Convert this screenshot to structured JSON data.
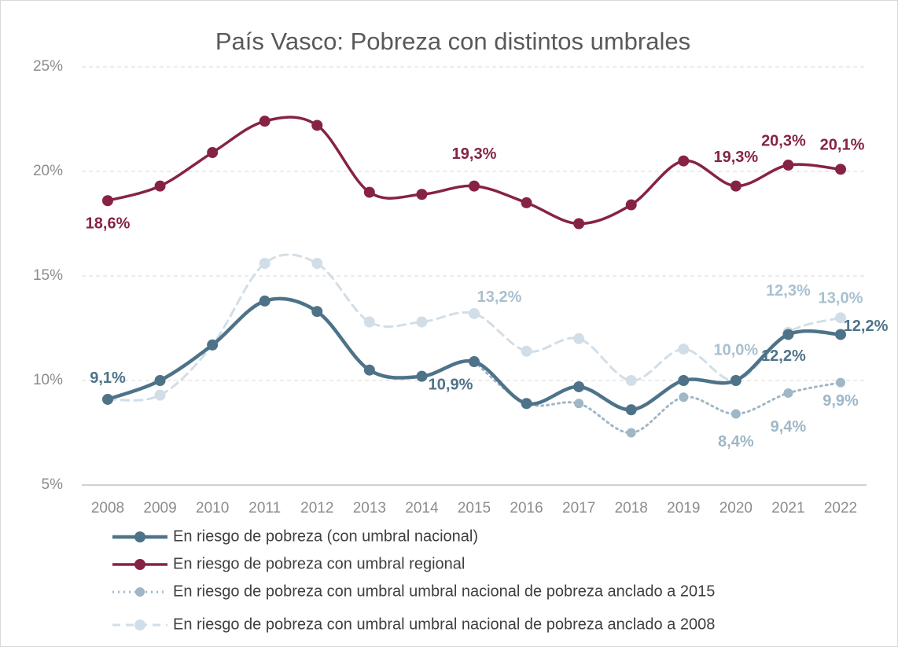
{
  "chart_data": {
    "type": "line",
    "title": "País Vasco: Pobreza con distintos umbrales",
    "categories": [
      "2008",
      "2009",
      "2010",
      "2011",
      "2012",
      "2013",
      "2014",
      "2015",
      "2016",
      "2017",
      "2018",
      "2019",
      "2020",
      "2021",
      "2022"
    ],
    "ylim": [
      5,
      25
    ],
    "yticks": [
      {
        "value": 5,
        "label": "5%"
      },
      {
        "value": 10,
        "label": "10%"
      },
      {
        "value": 15,
        "label": "15%"
      },
      {
        "value": 20,
        "label": "20%"
      },
      {
        "value": 25,
        "label": "25%"
      }
    ],
    "grid": true,
    "series": [
      {
        "name": "En riesgo de pobreza (con umbral nacional)",
        "color": "#4e7388",
        "style": "solid",
        "values": [
          9.1,
          10.0,
          11.7,
          13.8,
          13.3,
          10.5,
          10.2,
          10.9,
          8.9,
          9.7,
          8.6,
          10.0,
          10.0,
          12.2,
          12.2
        ],
        "value_labels": [
          "9,1%",
          null,
          null,
          null,
          null,
          null,
          null,
          "10,9%",
          null,
          null,
          null,
          null,
          null,
          "12,2%",
          "12,2%"
        ]
      },
      {
        "name": "En riesgo de pobreza con umbral regional",
        "color": "#862343",
        "style": "solid",
        "values": [
          18.6,
          19.3,
          20.9,
          22.4,
          22.2,
          19.0,
          18.9,
          19.3,
          18.5,
          17.5,
          18.4,
          20.5,
          19.3,
          20.3,
          20.1
        ],
        "value_labels": [
          "18,6%",
          null,
          null,
          null,
          null,
          null,
          null,
          "19,3%",
          null,
          null,
          null,
          null,
          "19,3%",
          "20,3%",
          "20,1%"
        ]
      },
      {
        "name": "En riesgo de pobreza con umbral umbral nacional de pobreza anclado a 2015",
        "color": "#9fb7c7",
        "style": "dotted",
        "values": [
          null,
          null,
          null,
          null,
          null,
          null,
          null,
          10.9,
          8.9,
          8.9,
          7.5,
          9.2,
          8.4,
          9.4,
          9.9
        ],
        "value_labels": [
          null,
          null,
          null,
          null,
          null,
          null,
          null,
          null,
          null,
          null,
          null,
          null,
          "8,4%",
          "9,4%",
          "9,9%"
        ]
      },
      {
        "name": "En riesgo de pobreza con umbral umbral nacional de pobreza anclado a 2008",
        "color": "#d2dee7",
        "style": "dashed",
        "values": [
          9.1,
          9.3,
          11.7,
          15.6,
          15.6,
          12.8,
          12.8,
          13.2,
          11.4,
          12.0,
          10.0,
          11.5,
          10.0,
          12.3,
          13.0
        ],
        "value_labels": [
          null,
          null,
          null,
          null,
          null,
          null,
          null,
          "13,2%",
          null,
          null,
          null,
          null,
          "10,0%",
          "12,3%",
          "13,0%"
        ]
      }
    ]
  }
}
